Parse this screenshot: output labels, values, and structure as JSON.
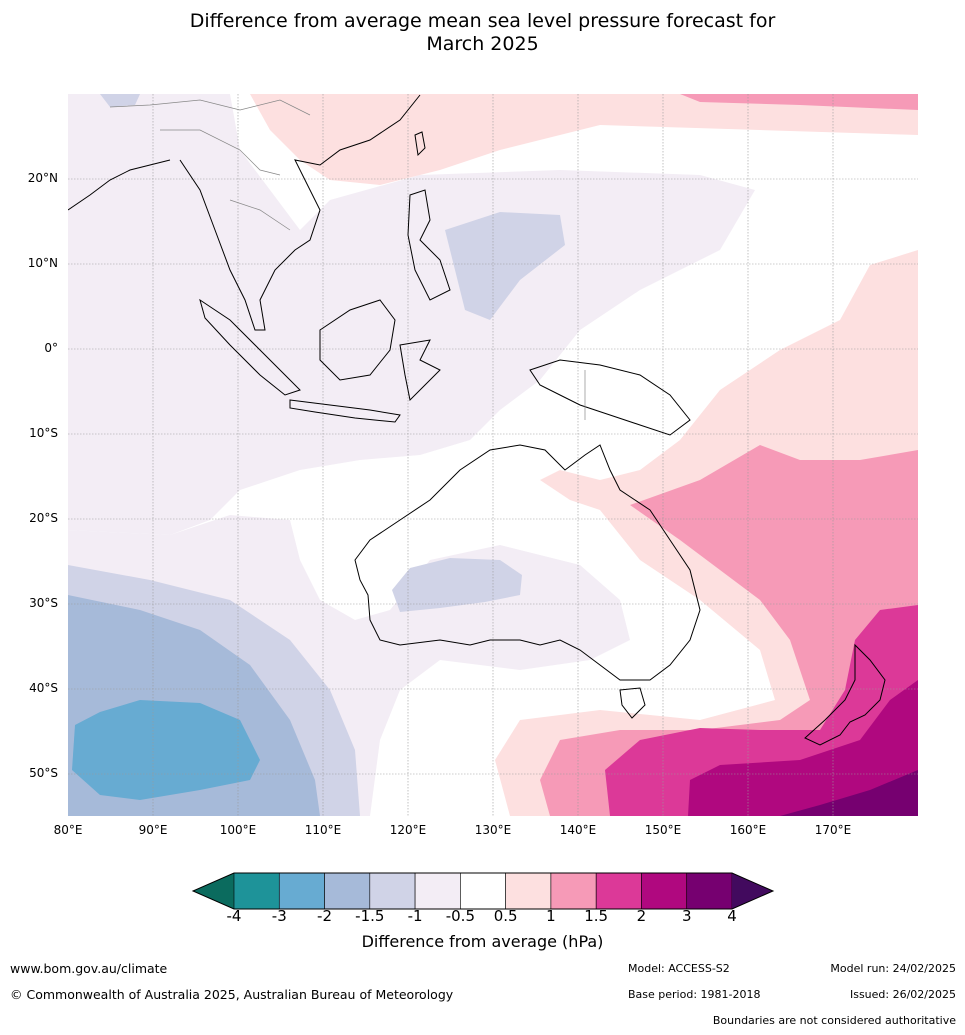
{
  "title": {
    "line1": "Difference from average mean sea level pressure forecast for",
    "line2": "March 2025"
  },
  "map": {
    "lat_labels": [
      "20°N",
      "10°N",
      "0°",
      "10°S",
      "20°S",
      "30°S",
      "40°S",
      "50°S"
    ],
    "lat_values": [
      20,
      10,
      0,
      -10,
      -20,
      -30,
      -40,
      -50
    ],
    "lon_labels": [
      "80°E",
      "90°E",
      "100°E",
      "110°E",
      "120°E",
      "130°E",
      "140°E",
      "150°E",
      "160°E",
      "170°E"
    ],
    "lon_values": [
      80,
      90,
      100,
      110,
      120,
      130,
      140,
      150,
      160,
      170
    ],
    "lat_range": [
      -55,
      30
    ],
    "lon_range": [
      80,
      180
    ],
    "gridlines": true
  },
  "colorbar": {
    "title": "Difference from average (hPa)",
    "ticks": [
      "-4",
      "-3",
      "-2",
      "-1.5",
      "-1",
      "-0.5",
      "0.5",
      "1",
      "1.5",
      "2",
      "3",
      "4"
    ],
    "under_color": "#0b6b5e",
    "over_color": "#420a5e",
    "colors": [
      "#1e9399",
      "#67abd2",
      "#a6bad9",
      "#d0d3e7",
      "#f3edf5",
      "#ffffff",
      "#fde0e0",
      "#f69ab7",
      "#dc3998",
      "#b0087f",
      "#760070"
    ]
  },
  "footer": {
    "website": "www.bom.gov.au/climate",
    "copyright": "© Commonwealth of Australia 2025, Australian Bureau of Meteorology",
    "model": "Model: ACCESS-S2",
    "base_period": "Base period: 1981-2018",
    "model_run": "Model run: 24/02/2025",
    "issued": "Issued: 26/02/2025",
    "disclaimer": "Boundaries are not considered authoritative"
  }
}
